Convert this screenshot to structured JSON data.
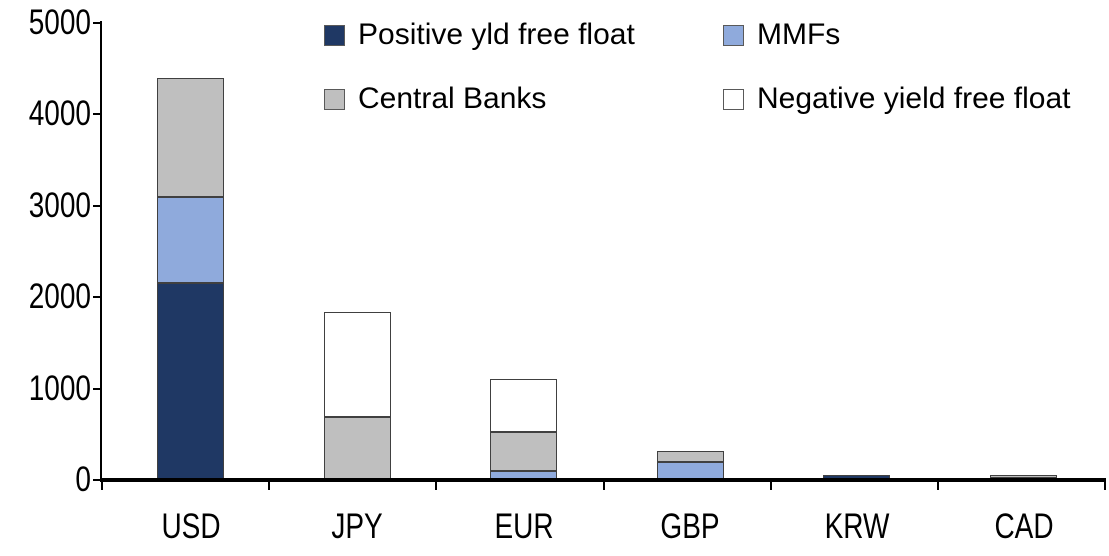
{
  "chart_data": {
    "type": "bar",
    "stacked": true,
    "title": "",
    "xlabel": "",
    "ylabel": "",
    "categories": [
      "USD",
      "JPY",
      "EUR",
      "GBP",
      "KRW",
      "CAD"
    ],
    "series": [
      {
        "name": "Positive yld free float",
        "color": "#1F3864",
        "values": [
          2150,
          0,
          0,
          0,
          50,
          25
        ]
      },
      {
        "name": "MMFs",
        "color": "#8FAADC",
        "values": [
          950,
          0,
          100,
          200,
          0,
          0
        ]
      },
      {
        "name": "Central Banks",
        "color": "#BFBFBF",
        "values": [
          1300,
          690,
          430,
          120,
          0,
          35
        ]
      },
      {
        "name": "Negative yield free float",
        "color": "#FFFFFF",
        "values": [
          0,
          1150,
          570,
          0,
          0,
          0
        ]
      }
    ],
    "totals": [
      4400,
      1840,
      1100,
      320,
      50,
      60
    ],
    "ylim": [
      0,
      5000
    ],
    "ytick_interval": 1000,
    "yticks": [
      "0",
      "1000",
      "2000",
      "3000",
      "4000",
      "5000"
    ],
    "legend_position": "top",
    "grid": false,
    "axis_color": "#000000",
    "segment_border_color": "#404040"
  }
}
